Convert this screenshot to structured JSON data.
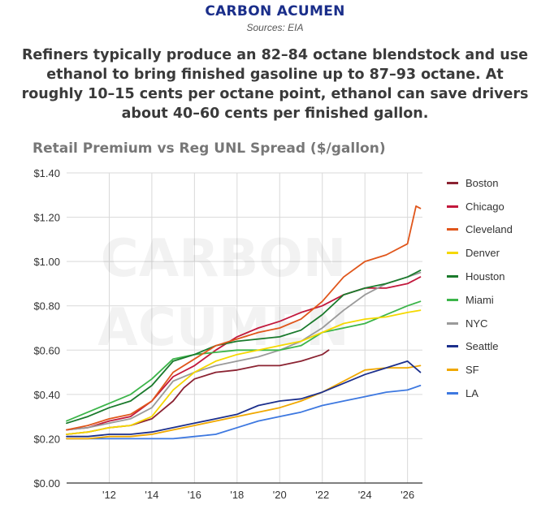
{
  "brand": {
    "name": "CARBON ACUMEN",
    "sources": "Sources: EIA"
  },
  "headline": "Refiners typically produce an 82–84 octane blendstock and use ethanol to bring finished gasoline up to 87–93 octane. At roughly 10–15 cents per octane point, ethanol can save drivers about 40–60 cents per finished gallon.",
  "watermark": {
    "line1": "CARBON",
    "line2": "ACUMEN"
  },
  "chart_data": {
    "type": "line",
    "title": "Retail Premium vs Reg UNL Spread ($/gallon)",
    "xlabel": "",
    "ylabel": "",
    "xlim": [
      2010.0,
      2026.7
    ],
    "ylim": [
      0,
      1.4
    ],
    "yticks": [
      0,
      0.2,
      0.4,
      0.6,
      0.8,
      1.0,
      1.2,
      1.4
    ],
    "ytick_labels": [
      "$0.00",
      "$0.20",
      "$0.40",
      "$0.60",
      "$0.80",
      "$1.00",
      "$1.20",
      "$1.40"
    ],
    "xticks": [
      2012,
      2014,
      2016,
      2018,
      2020,
      2022,
      2024,
      2026
    ],
    "xtick_labels": [
      "'12",
      "'14",
      "'16",
      "'18",
      "'20",
      "'22",
      "'24",
      "'26"
    ],
    "grid": true,
    "legend_position": "right",
    "series": [
      {
        "name": "Boston",
        "color": "#8b2332",
        "x": [
          2010.0,
          2011.0,
          2012.0,
          2013.0,
          2014.0,
          2015.0,
          2015.5,
          2016.0,
          2017.0,
          2018.0,
          2019.0,
          2020.0,
          2021.0,
          2022.0,
          2022.3
        ],
        "y": [
          0.22,
          0.23,
          0.25,
          0.26,
          0.29,
          0.37,
          0.43,
          0.47,
          0.5,
          0.51,
          0.53,
          0.53,
          0.55,
          0.58,
          0.6
        ]
      },
      {
        "name": "Chicago",
        "color": "#c2183c",
        "x": [
          2010.0,
          2011.0,
          2012.0,
          2013.0,
          2014.0,
          2015.0,
          2016.0,
          2017.0,
          2018.0,
          2019.0,
          2020.0,
          2021.0,
          2022.0,
          2023.0,
          2024.0,
          2025.0,
          2026.0,
          2026.6
        ],
        "y": [
          0.24,
          0.25,
          0.28,
          0.3,
          0.37,
          0.48,
          0.53,
          0.6,
          0.66,
          0.7,
          0.73,
          0.77,
          0.8,
          0.85,
          0.88,
          0.88,
          0.9,
          0.93
        ]
      },
      {
        "name": "Cleveland",
        "color": "#e0561b",
        "x": [
          2010.0,
          2011.0,
          2012.0,
          2013.0,
          2014.0,
          2015.0,
          2016.0,
          2017.0,
          2018.0,
          2019.0,
          2020.0,
          2021.0,
          2022.0,
          2023.0,
          2024.0,
          2025.0,
          2026.0,
          2026.4,
          2026.6
        ],
        "y": [
          0.24,
          0.26,
          0.29,
          0.31,
          0.37,
          0.5,
          0.56,
          0.62,
          0.65,
          0.68,
          0.7,
          0.74,
          0.82,
          0.93,
          1.0,
          1.03,
          1.08,
          1.25,
          1.24
        ]
      },
      {
        "name": "Denver",
        "color": "#f5d800",
        "x": [
          2010.0,
          2011.0,
          2012.0,
          2013.0,
          2014.0,
          2015.0,
          2016.0,
          2017.0,
          2018.0,
          2019.0,
          2020.0,
          2021.0,
          2022.0,
          2023.0,
          2024.0,
          2025.0,
          2026.0,
          2026.6
        ],
        "y": [
          0.22,
          0.23,
          0.25,
          0.26,
          0.3,
          0.42,
          0.5,
          0.55,
          0.58,
          0.6,
          0.62,
          0.64,
          0.68,
          0.72,
          0.74,
          0.75,
          0.77,
          0.78
        ]
      },
      {
        "name": "Houston",
        "color": "#1a7a2c",
        "x": [
          2010.0,
          2011.0,
          2012.0,
          2013.0,
          2014.0,
          2015.0,
          2016.0,
          2017.0,
          2018.0,
          2019.0,
          2020.0,
          2021.0,
          2022.0,
          2023.0,
          2024.0,
          2025.0,
          2026.0,
          2026.6
        ],
        "y": [
          0.27,
          0.3,
          0.34,
          0.37,
          0.44,
          0.55,
          0.58,
          0.62,
          0.64,
          0.65,
          0.66,
          0.69,
          0.76,
          0.85,
          0.88,
          0.9,
          0.93,
          0.96
        ]
      },
      {
        "name": "Miami",
        "color": "#3cb54a",
        "x": [
          2010.0,
          2011.0,
          2012.0,
          2013.0,
          2014.0,
          2015.0,
          2016.0,
          2017.0,
          2018.0,
          2019.0,
          2020.0,
          2021.0,
          2022.0,
          2023.0,
          2024.0,
          2025.0,
          2026.0,
          2026.6
        ],
        "y": [
          0.28,
          0.32,
          0.36,
          0.4,
          0.47,
          0.56,
          0.58,
          0.59,
          0.6,
          0.6,
          0.6,
          0.62,
          0.68,
          0.7,
          0.72,
          0.76,
          0.8,
          0.82
        ]
      },
      {
        "name": "NYC",
        "color": "#9a9a9a",
        "x": [
          2010.0,
          2011.0,
          2012.0,
          2013.0,
          2014.0,
          2015.0,
          2016.0,
          2017.0,
          2018.0,
          2019.0,
          2020.0,
          2021.0,
          2022.0,
          2023.0,
          2024.0,
          2025.0,
          2026.0,
          2026.6
        ],
        "y": [
          0.24,
          0.25,
          0.27,
          0.29,
          0.34,
          0.46,
          0.5,
          0.53,
          0.55,
          0.57,
          0.6,
          0.64,
          0.7,
          0.78,
          0.85,
          0.9,
          0.93,
          0.95
        ]
      },
      {
        "name": "Seattle",
        "color": "#1c2f8c",
        "x": [
          2010.0,
          2011.0,
          2012.0,
          2013.0,
          2014.0,
          2015.0,
          2016.0,
          2017.0,
          2018.0,
          2019.0,
          2020.0,
          2021.0,
          2022.0,
          2023.0,
          2024.0,
          2025.0,
          2026.0,
          2026.6
        ],
        "y": [
          0.21,
          0.21,
          0.22,
          0.22,
          0.23,
          0.25,
          0.27,
          0.29,
          0.31,
          0.35,
          0.37,
          0.38,
          0.41,
          0.45,
          0.49,
          0.52,
          0.55,
          0.5
        ]
      },
      {
        "name": "SF",
        "color": "#f0a800",
        "x": [
          2010.0,
          2011.0,
          2012.0,
          2013.0,
          2014.0,
          2015.0,
          2016.0,
          2017.0,
          2018.0,
          2019.0,
          2020.0,
          2021.0,
          2022.0,
          2023.0,
          2024.0,
          2025.0,
          2026.0,
          2026.6
        ],
        "y": [
          0.2,
          0.2,
          0.21,
          0.21,
          0.22,
          0.24,
          0.26,
          0.28,
          0.3,
          0.32,
          0.34,
          0.37,
          0.41,
          0.46,
          0.51,
          0.52,
          0.52,
          0.53
        ]
      },
      {
        "name": "LA",
        "color": "#3d78e0",
        "x": [
          2010.0,
          2011.0,
          2012.0,
          2013.0,
          2014.0,
          2015.0,
          2016.0,
          2017.0,
          2018.0,
          2019.0,
          2020.0,
          2021.0,
          2022.0,
          2023.0,
          2024.0,
          2025.0,
          2026.0,
          2026.6
        ],
        "y": [
          0.2,
          0.2,
          0.2,
          0.2,
          0.2,
          0.2,
          0.21,
          0.22,
          0.25,
          0.28,
          0.3,
          0.32,
          0.35,
          0.37,
          0.39,
          0.41,
          0.42,
          0.44
        ]
      }
    ]
  }
}
